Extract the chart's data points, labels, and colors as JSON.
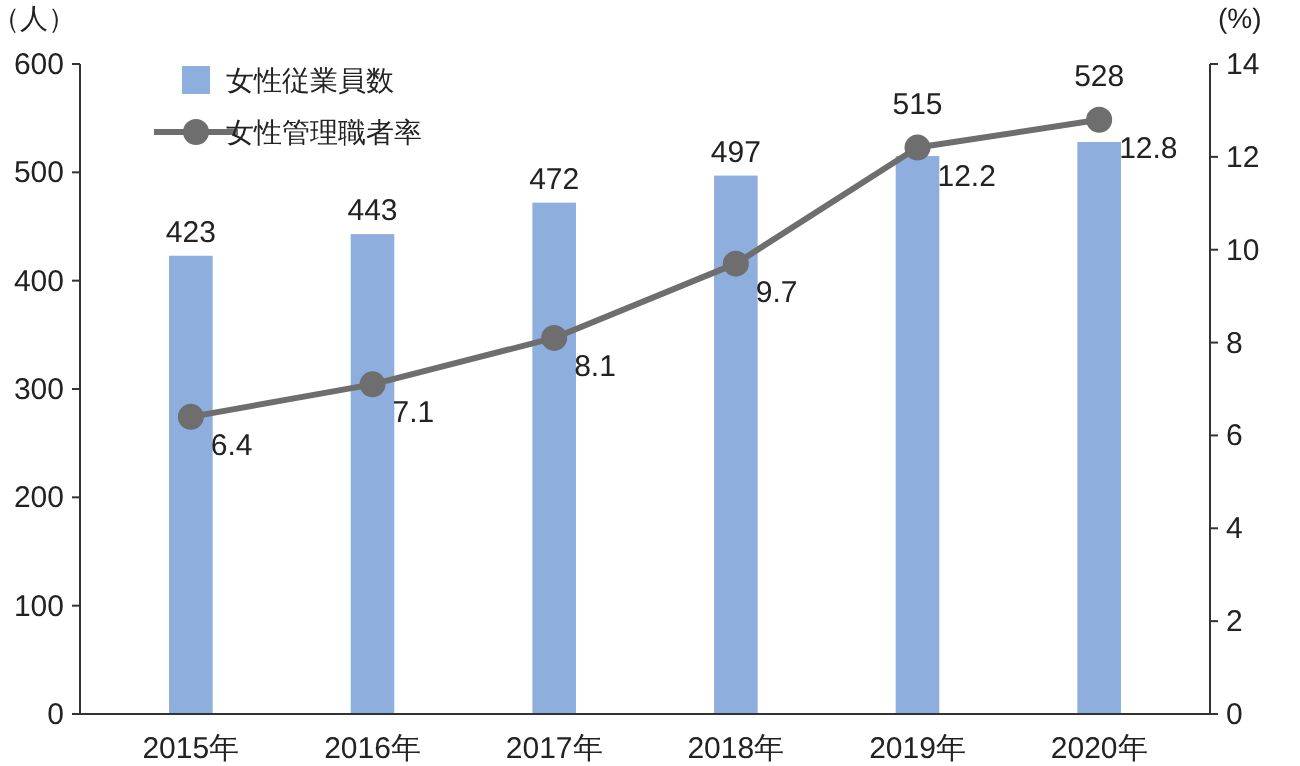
{
  "chart_data": {
    "type": "bar",
    "categories": [
      "2015年",
      "2016年",
      "2017年",
      "2018年",
      "2019年",
      "2020年"
    ],
    "ylabel": "（人）",
    "y2label": "(%)",
    "ylim": [
      0,
      600
    ],
    "yticks": [
      0,
      100,
      200,
      300,
      400,
      500,
      600
    ],
    "y2lim": [
      0,
      14
    ],
    "y2ticks": [
      0,
      2,
      4,
      6,
      8,
      10,
      12,
      14
    ],
    "series": [
      {
        "name": "女性従業員数",
        "color": "#8eaedd",
        "values": [
          423,
          443,
          472,
          497,
          515,
          528
        ]
      },
      {
        "name": "女性管理職者率",
        "type": "line",
        "axis": "y2",
        "color": "#6e6e6e",
        "marker": "circle",
        "line_style": "solid",
        "values": [
          6.4,
          7.1,
          8.1,
          9.7,
          12.2,
          12.8
        ]
      }
    ],
    "data_labels": true,
    "grid": false,
    "legend": "top left"
  }
}
